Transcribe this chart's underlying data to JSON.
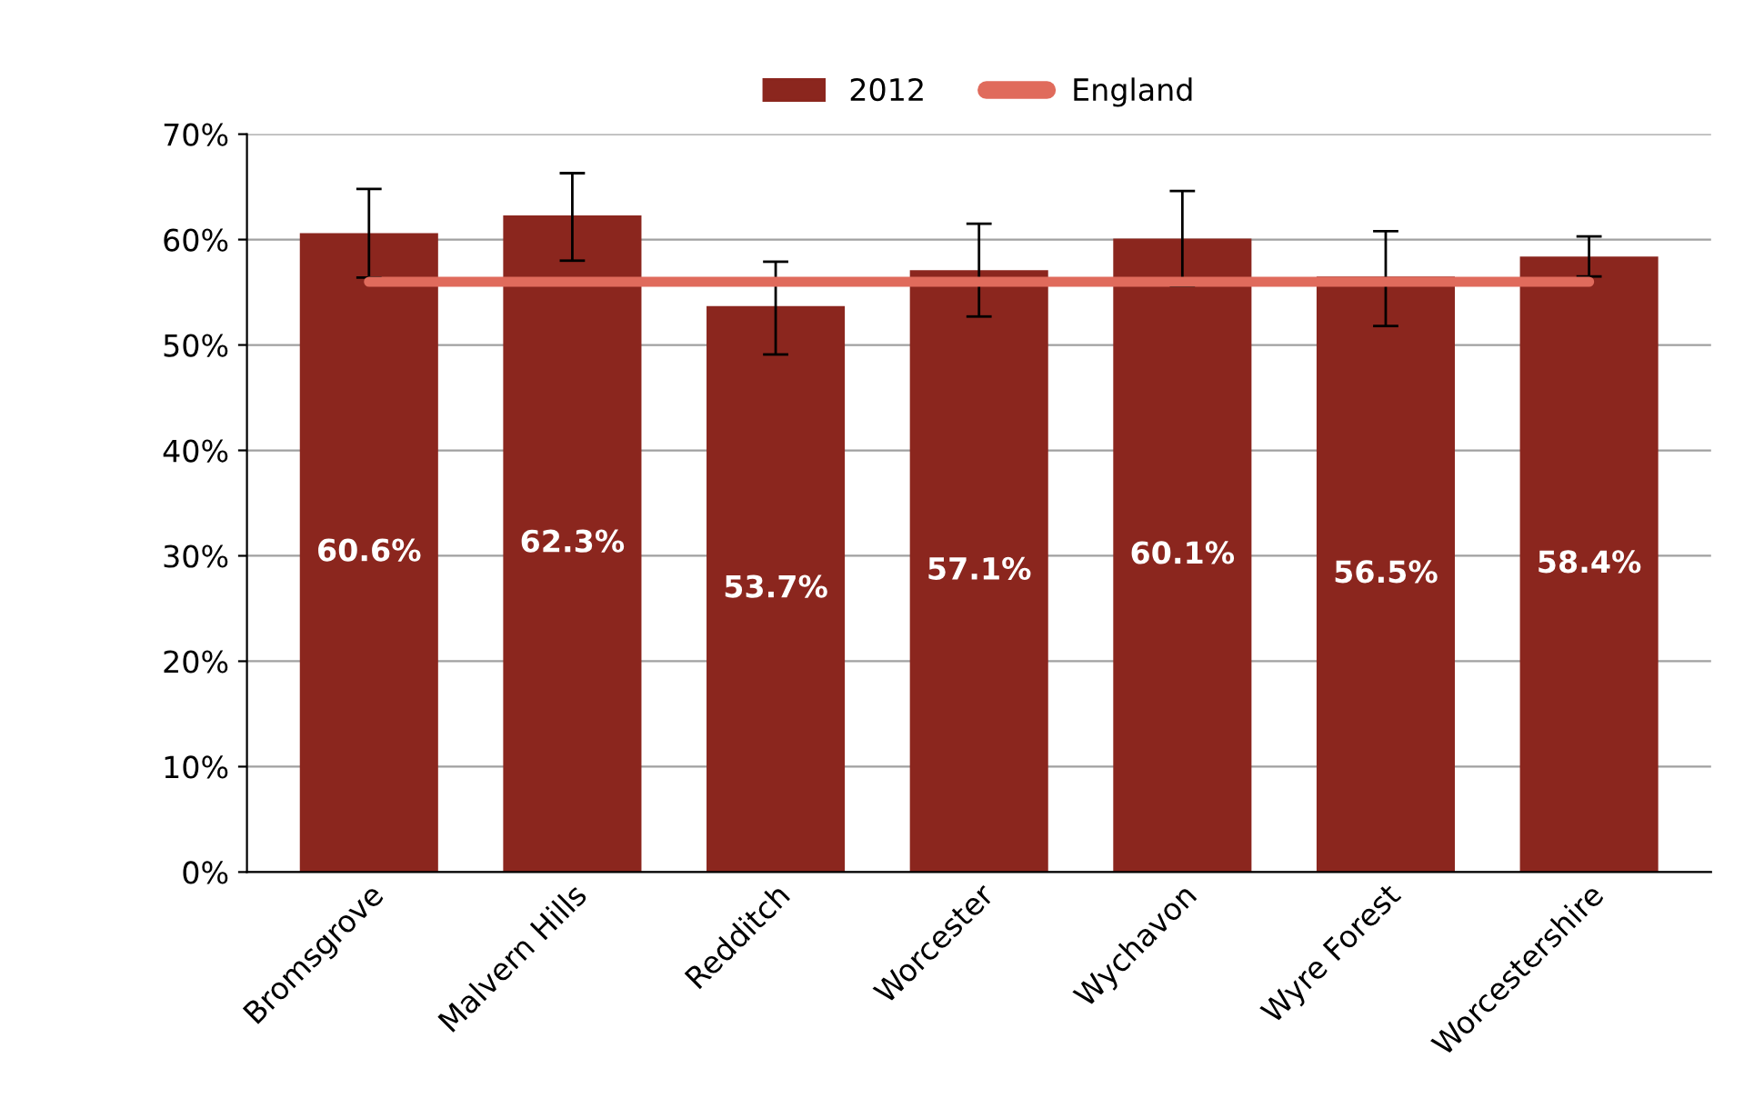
{
  "chart_data": {
    "type": "bar",
    "categories": [
      "Bromsgrove",
      "Malvern Hills",
      "Redditch",
      "Worcester",
      "Wychavon",
      "Wyre Forest",
      "Worcestershire"
    ],
    "series": [
      {
        "name": "2012",
        "color": "#8b261e",
        "values": [
          60.6,
          62.3,
          53.7,
          57.1,
          60.1,
          56.5,
          58.4
        ],
        "value_labels": [
          "60.6%",
          "62.3%",
          "53.7%",
          "57.1%",
          "60.1%",
          "56.5%",
          "58.4%"
        ],
        "errors": [
          [
            56.4,
            64.8
          ],
          [
            58.0,
            66.3
          ],
          [
            49.1,
            57.9
          ],
          [
            52.7,
            61.5
          ],
          [
            55.6,
            64.6
          ],
          [
            51.8,
            60.8
          ],
          [
            56.5,
            60.3
          ]
        ]
      },
      {
        "name": "England",
        "type": "line",
        "color": "#e06b5c",
        "values": [
          56,
          56,
          56,
          56,
          56,
          56,
          56
        ]
      }
    ],
    "ylim": [
      0,
      70
    ],
    "yticks": [
      {
        "value": 0,
        "label": "0%"
      },
      {
        "value": 10,
        "label": "10%"
      },
      {
        "value": 20,
        "label": "20%"
      },
      {
        "value": 30,
        "label": "30%"
      },
      {
        "value": 40,
        "label": "40%"
      },
      {
        "value": 50,
        "label": "50%"
      },
      {
        "value": 60,
        "label": "60%"
      },
      {
        "value": 70,
        "label": "70%"
      }
    ],
    "grid": "y",
    "legend": "top"
  }
}
